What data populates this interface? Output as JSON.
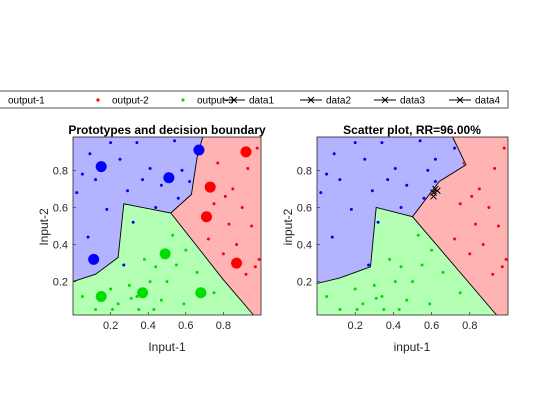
{
  "legend": {
    "entries": [
      {
        "label": "output-1",
        "kind": "dot",
        "color": "#0000ff"
      },
      {
        "label": "output-2",
        "kind": "dot",
        "color": "#ff0000"
      },
      {
        "label": "output-3",
        "kind": "dot",
        "color": "#00dd00"
      },
      {
        "label": "data1",
        "kind": "line-x",
        "color": "#000000"
      },
      {
        "label": "data2",
        "kind": "line-x",
        "color": "#000000"
      },
      {
        "label": "data3",
        "kind": "line-x",
        "color": "#000000"
      },
      {
        "label": "data4",
        "kind": "line-x",
        "color": "#000000"
      }
    ]
  },
  "chart_data": [
    {
      "type": "scatter",
      "title": "Prototypes and decision boundary",
      "xlabel": "Input-1",
      "ylabel": "Input-2",
      "xlim": [
        0,
        1
      ],
      "ylim": [
        0.02,
        0.98
      ],
      "xticks": [
        0.2,
        0.4,
        0.6,
        0.8
      ],
      "yticks": [
        0.2,
        0.4,
        0.6,
        0.8
      ],
      "region_colors": {
        "output-1": "#b3b3ff",
        "output-2": "#ffb3b3",
        "output-3": "#b3ffb3"
      },
      "regions": {
        "output-1": [
          [
            0,
            0.98
          ],
          [
            0.69,
            0.98
          ],
          [
            0.66,
            0.87
          ],
          [
            0.63,
            0.67
          ],
          [
            0.52,
            0.57
          ],
          [
            0.27,
            0.62
          ],
          [
            0.24,
            0.33
          ],
          [
            0.12,
            0.24
          ],
          [
            0,
            0.2
          ]
        ],
        "output-2": [
          [
            0.69,
            0.98
          ],
          [
            1,
            0.98
          ],
          [
            1,
            0.02
          ],
          [
            0.96,
            0.02
          ],
          [
            0.8,
            0.21
          ],
          [
            0.52,
            0.57
          ],
          [
            0.63,
            0.67
          ],
          [
            0.66,
            0.87
          ]
        ],
        "output-3": [
          [
            0,
            0.2
          ],
          [
            0.12,
            0.24
          ],
          [
            0.24,
            0.33
          ],
          [
            0.27,
            0.62
          ],
          [
            0.52,
            0.57
          ],
          [
            0.8,
            0.21
          ],
          [
            0.96,
            0.02
          ],
          [
            0,
            0.02
          ]
        ]
      },
      "boundaries": [
        [
          [
            0,
            0.2
          ],
          [
            0.12,
            0.24
          ],
          [
            0.24,
            0.33
          ],
          [
            0.27,
            0.62
          ],
          [
            0.52,
            0.57
          ],
          [
            0.8,
            0.21
          ],
          [
            0.96,
            0.02
          ]
        ],
        [
          [
            0.52,
            0.57
          ],
          [
            0.63,
            0.67
          ],
          [
            0.66,
            0.87
          ],
          [
            0.69,
            0.98
          ]
        ]
      ],
      "series": [
        {
          "name": "output-1",
          "color": "#0000ff",
          "marker": "prototype",
          "points": [
            [
              0.15,
              0.82
            ],
            [
              0.11,
              0.32
            ],
            [
              0.51,
              0.76
            ],
            [
              0.67,
              0.91
            ]
          ]
        },
        {
          "name": "output-2",
          "color": "#ff0000",
          "marker": "prototype",
          "points": [
            [
              0.73,
              0.71
            ],
            [
              0.71,
              0.55
            ],
            [
              0.92,
              0.9
            ],
            [
              0.87,
              0.3
            ]
          ]
        },
        {
          "name": "output-3",
          "color": "#00dd00",
          "marker": "prototype",
          "points": [
            [
              0.15,
              0.12
            ],
            [
              0.37,
              0.14
            ],
            [
              0.49,
              0.35
            ],
            [
              0.68,
              0.14
            ]
          ]
        },
        {
          "name": "output-1",
          "color": "#0000ff",
          "marker": "dot",
          "points": [
            [
              0.02,
              0.68
            ],
            [
              0.05,
              0.78
            ],
            [
              0.09,
              0.89
            ],
            [
              0.12,
              0.75
            ],
            [
              0.18,
              0.59
            ],
            [
              0.2,
              0.95
            ],
            [
              0.25,
              0.86
            ],
            [
              0.29,
              0.69
            ],
            [
              0.32,
              0.52
            ],
            [
              0.34,
              0.95
            ],
            [
              0.37,
              0.75
            ],
            [
              0.41,
              0.81
            ],
            [
              0.44,
              0.6
            ],
            [
              0.47,
              0.72
            ],
            [
              0.54,
              0.96
            ],
            [
              0.56,
              0.65
            ],
            [
              0.58,
              0.8
            ],
            [
              0.62,
              0.74
            ],
            [
              0.27,
              0.29
            ],
            [
              0.08,
              0.44
            ]
          ]
        },
        {
          "name": "output-2",
          "color": "#ff0000",
          "marker": "dot",
          "points": [
            [
              0.72,
              0.43
            ],
            [
              0.75,
              0.62
            ],
            [
              0.77,
              0.84
            ],
            [
              0.8,
              0.35
            ],
            [
              0.81,
              0.66
            ],
            [
              0.83,
              0.51
            ],
            [
              0.85,
              0.7
            ],
            [
              0.87,
              0.4
            ],
            [
              0.9,
              0.6
            ],
            [
              0.92,
              0.24
            ],
            [
              0.93,
              0.81
            ],
            [
              0.95,
              0.5
            ],
            [
              0.97,
              0.28
            ],
            [
              0.98,
              0.92
            ],
            [
              0.99,
              0.32
            ]
          ]
        },
        {
          "name": "output-3",
          "color": "#00dd00",
          "marker": "dot",
          "points": [
            [
              0.05,
              0.12
            ],
            [
              0.12,
              0.05
            ],
            [
              0.2,
              0.16
            ],
            [
              0.24,
              0.08
            ],
            [
              0.3,
              0.18
            ],
            [
              0.34,
              0.12
            ],
            [
              0.38,
              0.32
            ],
            [
              0.41,
              0.2
            ],
            [
              0.44,
              0.28
            ],
            [
              0.47,
              0.1
            ],
            [
              0.53,
              0.45
            ],
            [
              0.55,
              0.29
            ],
            [
              0.59,
              0.08
            ],
            [
              0.6,
              0.37
            ],
            [
              0.66,
              0.25
            ],
            [
              0.75,
              0.14
            ],
            [
              0.21,
              0.05
            ],
            [
              0.43,
              0.05
            ],
            [
              0.31,
              0.11
            ],
            [
              0.35,
              0.05
            ],
            [
              0.5,
              0.2
            ]
          ]
        }
      ],
      "crosses": []
    },
    {
      "type": "scatter",
      "title": "Scatter plot, RR=96.00%",
      "xlabel": "input-1",
      "ylabel": "input-2",
      "xlim": [
        0,
        1
      ],
      "ylim": [
        0.02,
        0.98
      ],
      "xticks": [
        0.2,
        0.4,
        0.6,
        0.8
      ],
      "yticks": [
        0.2,
        0.4,
        0.6,
        0.8
      ],
      "region_colors": {
        "output-1": "#b3b3ff",
        "output-2": "#ffb3b3",
        "output-3": "#b3ffb3"
      },
      "regions": {
        "output-1": [
          [
            0,
            0.98
          ],
          [
            0.71,
            0.98
          ],
          [
            0.78,
            0.83
          ],
          [
            0.64,
            0.74
          ],
          [
            0.5,
            0.55
          ],
          [
            0.31,
            0.6
          ],
          [
            0.28,
            0.28
          ],
          [
            0.12,
            0.22
          ],
          [
            0,
            0.19
          ]
        ],
        "output-2": [
          [
            0.71,
            0.98
          ],
          [
            1,
            0.98
          ],
          [
            1,
            0.02
          ],
          [
            0.94,
            0.02
          ],
          [
            0.5,
            0.55
          ],
          [
            0.64,
            0.74
          ],
          [
            0.78,
            0.83
          ]
        ],
        "output-3": [
          [
            0,
            0.19
          ],
          [
            0.12,
            0.22
          ],
          [
            0.28,
            0.28
          ],
          [
            0.31,
            0.6
          ],
          [
            0.5,
            0.55
          ],
          [
            0.94,
            0.02
          ],
          [
            0,
            0.02
          ]
        ]
      },
      "boundaries": [
        [
          [
            0,
            0.19
          ],
          [
            0.12,
            0.22
          ],
          [
            0.28,
            0.28
          ],
          [
            0.31,
            0.6
          ],
          [
            0.5,
            0.55
          ],
          [
            0.94,
            0.02
          ]
        ],
        [
          [
            0.5,
            0.55
          ],
          [
            0.64,
            0.74
          ],
          [
            0.78,
            0.83
          ],
          [
            0.71,
            0.98
          ]
        ]
      ],
      "series": [
        {
          "name": "output-1",
          "color": "#0000ff",
          "marker": "dot",
          "points": [
            [
              0.02,
              0.68
            ],
            [
              0.05,
              0.78
            ],
            [
              0.09,
              0.89
            ],
            [
              0.12,
              0.75
            ],
            [
              0.18,
              0.59
            ],
            [
              0.2,
              0.95
            ],
            [
              0.25,
              0.86
            ],
            [
              0.29,
              0.69
            ],
            [
              0.32,
              0.52
            ],
            [
              0.34,
              0.95
            ],
            [
              0.37,
              0.75
            ],
            [
              0.41,
              0.81
            ],
            [
              0.44,
              0.6
            ],
            [
              0.47,
              0.72
            ],
            [
              0.54,
              0.96
            ],
            [
              0.56,
              0.65
            ],
            [
              0.58,
              0.8
            ],
            [
              0.62,
              0.74
            ],
            [
              0.27,
              0.29
            ],
            [
              0.08,
              0.44
            ],
            [
              0.72,
              0.92
            ],
            [
              0.62,
              0.86
            ]
          ]
        },
        {
          "name": "output-2",
          "color": "#ff0000",
          "marker": "dot",
          "points": [
            [
              0.72,
              0.43
            ],
            [
              0.75,
              0.62
            ],
            [
              0.77,
              0.84
            ],
            [
              0.8,
              0.35
            ],
            [
              0.81,
              0.66
            ],
            [
              0.83,
              0.51
            ],
            [
              0.85,
              0.7
            ],
            [
              0.87,
              0.4
            ],
            [
              0.9,
              0.6
            ],
            [
              0.92,
              0.24
            ],
            [
              0.93,
              0.81
            ],
            [
              0.95,
              0.5
            ],
            [
              0.97,
              0.28
            ],
            [
              0.98,
              0.92
            ],
            [
              0.99,
              0.32
            ]
          ]
        },
        {
          "name": "output-3",
          "color": "#00dd00",
          "marker": "dot",
          "points": [
            [
              0.05,
              0.12
            ],
            [
              0.12,
              0.05
            ],
            [
              0.2,
              0.16
            ],
            [
              0.24,
              0.08
            ],
            [
              0.3,
              0.18
            ],
            [
              0.34,
              0.12
            ],
            [
              0.38,
              0.32
            ],
            [
              0.41,
              0.2
            ],
            [
              0.44,
              0.28
            ],
            [
              0.47,
              0.1
            ],
            [
              0.53,
              0.45
            ],
            [
              0.55,
              0.29
            ],
            [
              0.59,
              0.08
            ],
            [
              0.6,
              0.37
            ],
            [
              0.66,
              0.25
            ],
            [
              0.75,
              0.14
            ],
            [
              0.21,
              0.05
            ],
            [
              0.43,
              0.05
            ],
            [
              0.31,
              0.11
            ],
            [
              0.35,
              0.05
            ],
            [
              0.5,
              0.2
            ]
          ]
        }
      ],
      "crosses": [
        [
          0.61,
          0.66
        ],
        [
          0.62,
          0.7
        ],
        [
          0.61,
          0.68
        ],
        [
          0.63,
          0.69
        ]
      ]
    }
  ]
}
